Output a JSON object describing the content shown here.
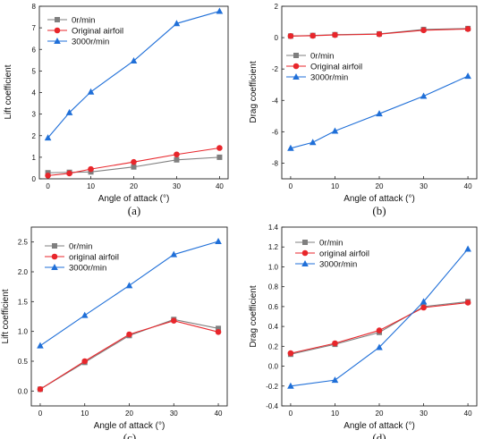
{
  "chart_data": [
    {
      "id": "a",
      "type": "line",
      "panel_label": "(a)",
      "xlabel": "Angle of attack (°)",
      "ylabel": "Lift coefficient",
      "xlim": [
        -2,
        42
      ],
      "ylim": [
        0,
        8
      ],
      "xticks": [
        0,
        10,
        20,
        30,
        40
      ],
      "yticks": [
        0,
        1,
        2,
        3,
        4,
        5,
        6,
        7,
        8
      ],
      "yticks_labels": [
        "0",
        "1",
        "2",
        "3",
        "4",
        "5",
        "6",
        "7",
        "8"
      ],
      "legend_position": "top-left",
      "x": [
        0,
        5,
        10,
        20,
        30,
        40
      ],
      "series": [
        {
          "name": "0r/min",
          "marker": "square",
          "color": "#7f7f7f",
          "values": [
            0.28,
            0.3,
            0.32,
            0.55,
            0.88,
            1.0
          ]
        },
        {
          "name": "Original airfoil",
          "marker": "circle",
          "color": "#e8262b",
          "values": [
            0.15,
            0.25,
            0.45,
            0.78,
            1.13,
            1.43
          ]
        },
        {
          "name": "3000r/min",
          "marker": "triangle",
          "color": "#1f6fd8",
          "values": [
            1.9,
            3.07,
            4.03,
            5.47,
            7.2,
            7.77
          ]
        }
      ]
    },
    {
      "id": "b",
      "type": "line",
      "panel_label": "(b)",
      "xlabel": "Angle of attack (°)",
      "ylabel": "Drag coefficient",
      "xlim": [
        -2,
        42
      ],
      "ylim": [
        -9,
        2
      ],
      "xticks": [
        0,
        10,
        20,
        30,
        40
      ],
      "yticks": [
        -8,
        -6,
        -4,
        -2,
        0,
        2
      ],
      "yticks_labels": [
        "-8",
        "-6",
        "-4",
        "-2",
        "0",
        "2"
      ],
      "legend_position": "middle-left",
      "x": [
        0,
        5,
        10,
        20,
        30,
        40
      ],
      "series": [
        {
          "name": "0r/min",
          "marker": "square",
          "color": "#7f7f7f",
          "values": [
            0.1,
            0.14,
            0.19,
            0.24,
            0.52,
            0.58
          ]
        },
        {
          "name": "Original airfoil",
          "marker": "circle",
          "color": "#e8262b",
          "values": [
            0.1,
            0.12,
            0.17,
            0.22,
            0.47,
            0.55
          ]
        },
        {
          "name": "3000r/min",
          "marker": "triangle",
          "color": "#1f6fd8",
          "values": [
            -7.05,
            -6.68,
            -5.95,
            -4.85,
            -3.73,
            -2.45
          ]
        }
      ]
    },
    {
      "id": "c",
      "type": "line",
      "panel_label": "(c)",
      "xlabel": "Angle of attack (°)",
      "ylabel": "Lift coefficient",
      "xlim": [
        -2,
        42
      ],
      "ylim": [
        -0.25,
        2.75
      ],
      "xticks": [
        0,
        10,
        20,
        30,
        40
      ],
      "yticks": [
        0,
        0.5,
        1.0,
        1.5,
        2.0,
        2.5
      ],
      "yticks_labels": [
        "0.0",
        "0.5",
        "1.0",
        "1.5",
        "2.0",
        "2.5"
      ],
      "legend_position": "top-left",
      "x": [
        0,
        10,
        20,
        30,
        40
      ],
      "series": [
        {
          "name": "0r/min",
          "marker": "square",
          "color": "#7f7f7f",
          "values": [
            0.03,
            0.48,
            0.93,
            1.2,
            1.05
          ]
        },
        {
          "name": "original airfoil",
          "marker": "circle",
          "color": "#e8262b",
          "values": [
            0.03,
            0.5,
            0.95,
            1.18,
            0.99
          ]
        },
        {
          "name": "3000r/min",
          "marker": "triangle",
          "color": "#1f6fd8",
          "values": [
            0.76,
            1.27,
            1.77,
            2.29,
            2.51
          ]
        }
      ]
    },
    {
      "id": "d",
      "type": "line",
      "panel_label": "(d)",
      "xlabel": "Angle of attack (°)",
      "ylabel": "Drag coefficient",
      "xlim": [
        -2,
        42
      ],
      "ylim": [
        -0.4,
        1.4
      ],
      "xticks": [
        0,
        10,
        20,
        30,
        40
      ],
      "yticks": [
        -0.4,
        -0.2,
        0,
        0.2,
        0.4,
        0.6,
        0.8,
        1.0,
        1.2,
        1.4
      ],
      "yticks_labels": [
        "-0.4",
        "-0.2",
        "0.0",
        "0.2",
        "0.4",
        "0.6",
        "0.8",
        "1.0",
        "1.2",
        "1.4"
      ],
      "legend_position": "top-left",
      "x": [
        0,
        10,
        20,
        30,
        40
      ],
      "series": [
        {
          "name": "0r/min",
          "marker": "square",
          "color": "#7f7f7f",
          "values": [
            0.12,
            0.22,
            0.34,
            0.6,
            0.65
          ]
        },
        {
          "name": "original airfoil",
          "marker": "circle",
          "color": "#e8262b",
          "values": [
            0.13,
            0.23,
            0.36,
            0.59,
            0.64
          ]
        },
        {
          "name": "3000r/min",
          "marker": "triangle",
          "color": "#1f6fd8",
          "values": [
            -0.2,
            -0.14,
            0.19,
            0.65,
            1.18
          ]
        }
      ]
    }
  ]
}
